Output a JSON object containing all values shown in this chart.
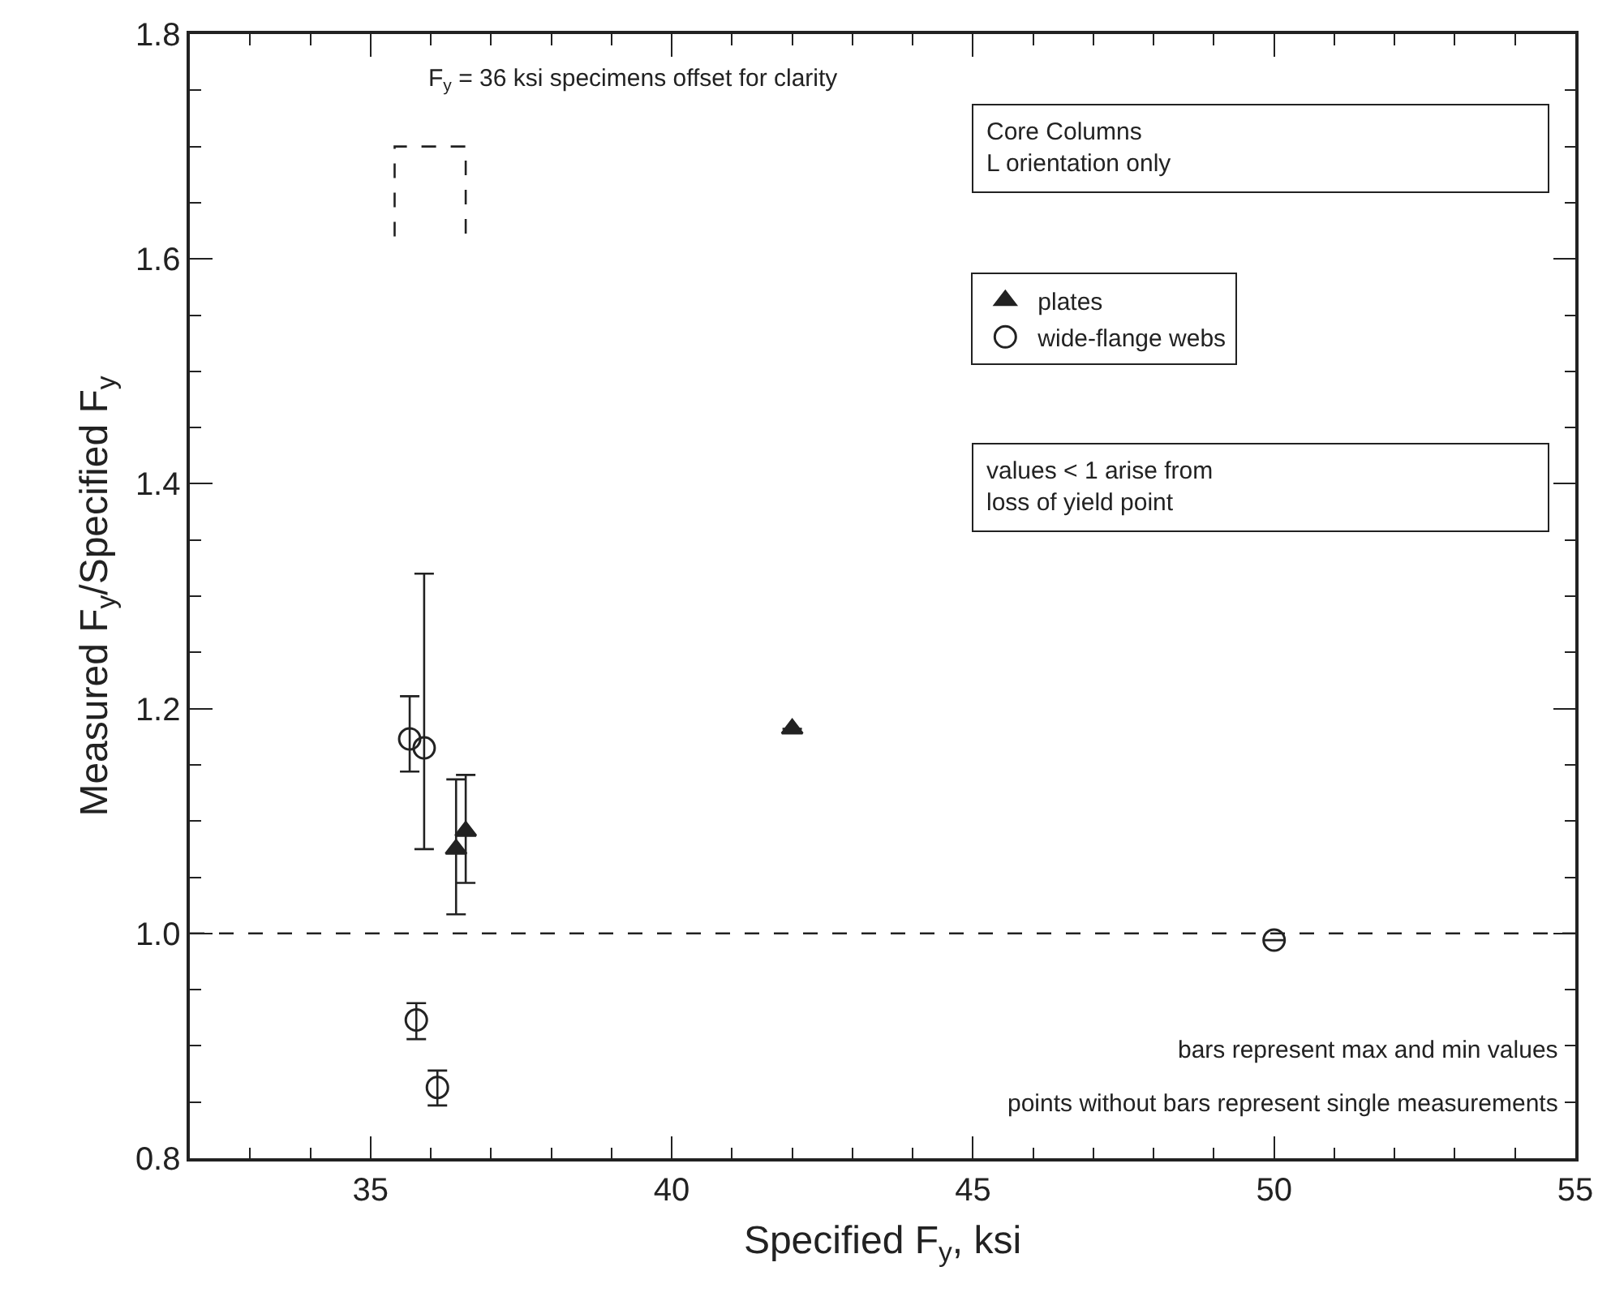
{
  "chart_data": {
    "type": "scatter",
    "xlabel": "Specified F$_{y}$, ksi",
    "ylabel": "Measured F$_{y}$/Specified F$_{y}$",
    "xlim": [
      32,
      55
    ],
    "xticks": [
      {
        "value": 33,
        "label": null
      },
      {
        "value": 34,
        "label": null
      },
      35,
      {
        "value": 36,
        "label": null
      },
      {
        "value": 37,
        "label": null
      },
      {
        "value": 38,
        "label": null
      },
      {
        "value": 39,
        "label": null
      },
      40,
      {
        "value": 41,
        "label": null
      },
      {
        "value": 42,
        "label": null
      },
      {
        "value": 43,
        "label": null
      },
      {
        "value": 44,
        "label": null
      },
      45,
      {
        "value": 46,
        "label": null
      },
      {
        "value": 47,
        "label": null
      },
      {
        "value": 48,
        "label": null
      },
      {
        "value": 49,
        "label": null
      },
      50,
      {
        "value": 51,
        "label": null
      },
      {
        "value": 52,
        "label": null
      },
      {
        "value": 53,
        "label": null
      },
      {
        "value": 54,
        "label": null
      },
      55
    ],
    "ylim": [
      0.8,
      1.8
    ],
    "yticks": [
      {
        "value": 0.8,
        "label": "0.8"
      },
      {
        "value": 0.85,
        "label": null
      },
      {
        "value": 0.9,
        "label": null
      },
      {
        "value": 0.95,
        "label": null
      },
      {
        "value": 1.0,
        "label": "1.0"
      },
      {
        "value": 1.05,
        "label": null
      },
      {
        "value": 1.1,
        "label": null
      },
      {
        "value": 1.15,
        "label": null
      },
      {
        "value": 1.2,
        "label": "1.2"
      },
      {
        "value": 1.25,
        "label": null
      },
      {
        "value": 1.3,
        "label": null
      },
      {
        "value": 1.35,
        "label": null
      },
      {
        "value": 1.4,
        "label": "1.4"
      },
      {
        "value": 1.45,
        "label": null
      },
      {
        "value": 1.5,
        "label": null
      },
      {
        "value": 1.55,
        "label": null
      },
      {
        "value": 1.6,
        "label": "1.6"
      },
      {
        "value": 1.65,
        "label": null
      },
      {
        "value": 1.7,
        "label": null
      },
      {
        "value": 1.75,
        "label": null
      },
      {
        "value": 1.8,
        "label": "1.8"
      }
    ],
    "legend": "top right",
    "series": [
      {
        "name": "plates",
        "color": "#222222",
        "marker": "triangle",
        "x": [
          36.42,
          36.58,
          42.0
        ],
        "values": [
          1.075,
          1.091,
          1.182
        ],
        "errors": [
          [
            1.017,
            1.137
          ],
          [
            1.045,
            1.141
          ],
          null
        ]
      },
      {
        "name": "wide-flange webs",
        "color": "#222222",
        "marker": "circle",
        "x": [
          35.65,
          35.89,
          35.76,
          36.11,
          50.0
        ],
        "values": [
          1.173,
          1.165,
          0.923,
          0.863,
          0.994
        ],
        "errors": [
          [
            1.144,
            1.211
          ],
          [
            1.075,
            1.32
          ],
          [
            0.906,
            0.938
          ],
          [
            0.847,
            0.878
          ],
          null
        ]
      }
    ],
    "ref_lines": [
      {
        "axis": "y",
        "value": 1.0,
        "line_style": "dashed",
        "color": "#222222"
      }
    ],
    "annotations": [
      "F$_{y}$ = 36 ksi specimens offset for clarity",
      "Core Columns\nL orientation only",
      "values < 1 arise from\nloss of yield point",
      "bars represent max and min values",
      "points without bars represent single measurements"
    ]
  }
}
